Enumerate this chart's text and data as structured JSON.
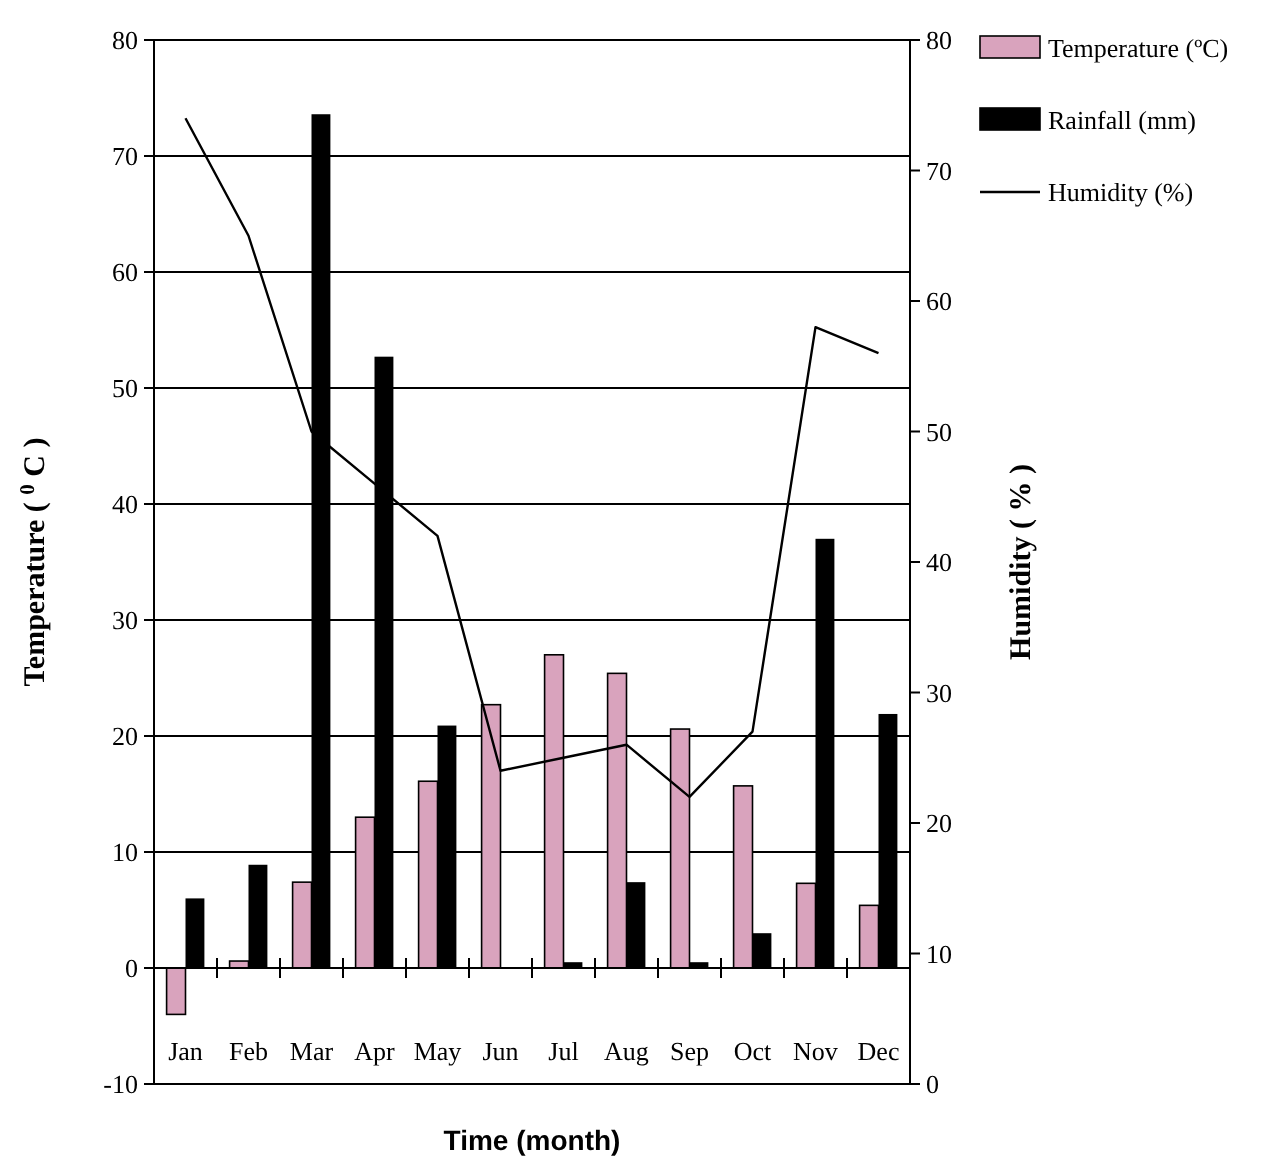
{
  "chart_data": {
    "type": "bar",
    "xlabel": "Time (month)",
    "ylabel": "Temperature ( $^{0}$ C )",
    "y2label": "Humidity ( % )",
    "categories": [
      "Jan",
      "Feb",
      "Mar",
      "Apr",
      "May",
      "Jun",
      "Jul",
      "Aug",
      "Sep",
      "Oct",
      "Nov",
      "Dec"
    ],
    "series": [
      {
        "name": "Temperature (ºC)",
        "color": "#d9a3bd",
        "values": [
          -4,
          0.6,
          7.4,
          13,
          16.1,
          22.7,
          27,
          25.4,
          20.6,
          15.7,
          7.3,
          5.4
        ]
      },
      {
        "name": "Rainfall (mm)",
        "color": "#000000",
        "values": [
          6,
          8.9,
          73.6,
          52.7,
          20.9,
          0,
          0.5,
          7.4,
          0.5,
          3,
          37,
          21.9
        ]
      },
      {
        "name": "Humidity (%)",
        "type": "line",
        "axis": "y2",
        "color": "#000000",
        "values": [
          74,
          65,
          50,
          46,
          42,
          24,
          25,
          26,
          22,
          27,
          58,
          56
        ]
      }
    ],
    "ylim": [
      -10,
      80
    ],
    "yticks": [
      -10,
      0,
      10,
      20,
      30,
      40,
      50,
      60,
      70,
      80
    ],
    "y2lim": [
      0,
      80
    ],
    "y2ticks": [
      0,
      10,
      20,
      30,
      40,
      50,
      60,
      70,
      80
    ],
    "grid": "y",
    "legend": "top right",
    "marker": "none",
    "line_style": "solid"
  }
}
